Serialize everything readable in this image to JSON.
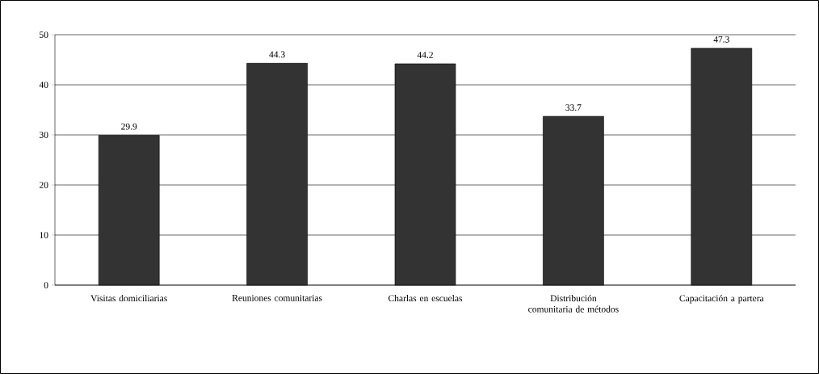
{
  "chart_data": {
    "type": "bar",
    "categories": [
      "Visitas domiciliarias",
      "Reuniones comunitarias",
      "Charlas en escuelas",
      "Distribución comunitaria de métodos",
      "Capacitación a partera"
    ],
    "values": [
      29.9,
      44.3,
      44.2,
      33.7,
      47.3
    ],
    "color": "#333333",
    "ylim": [
      0,
      50
    ],
    "yticks": [
      0,
      10,
      20,
      30,
      40,
      50
    ],
    "grid": "y",
    "data_labels": true
  }
}
